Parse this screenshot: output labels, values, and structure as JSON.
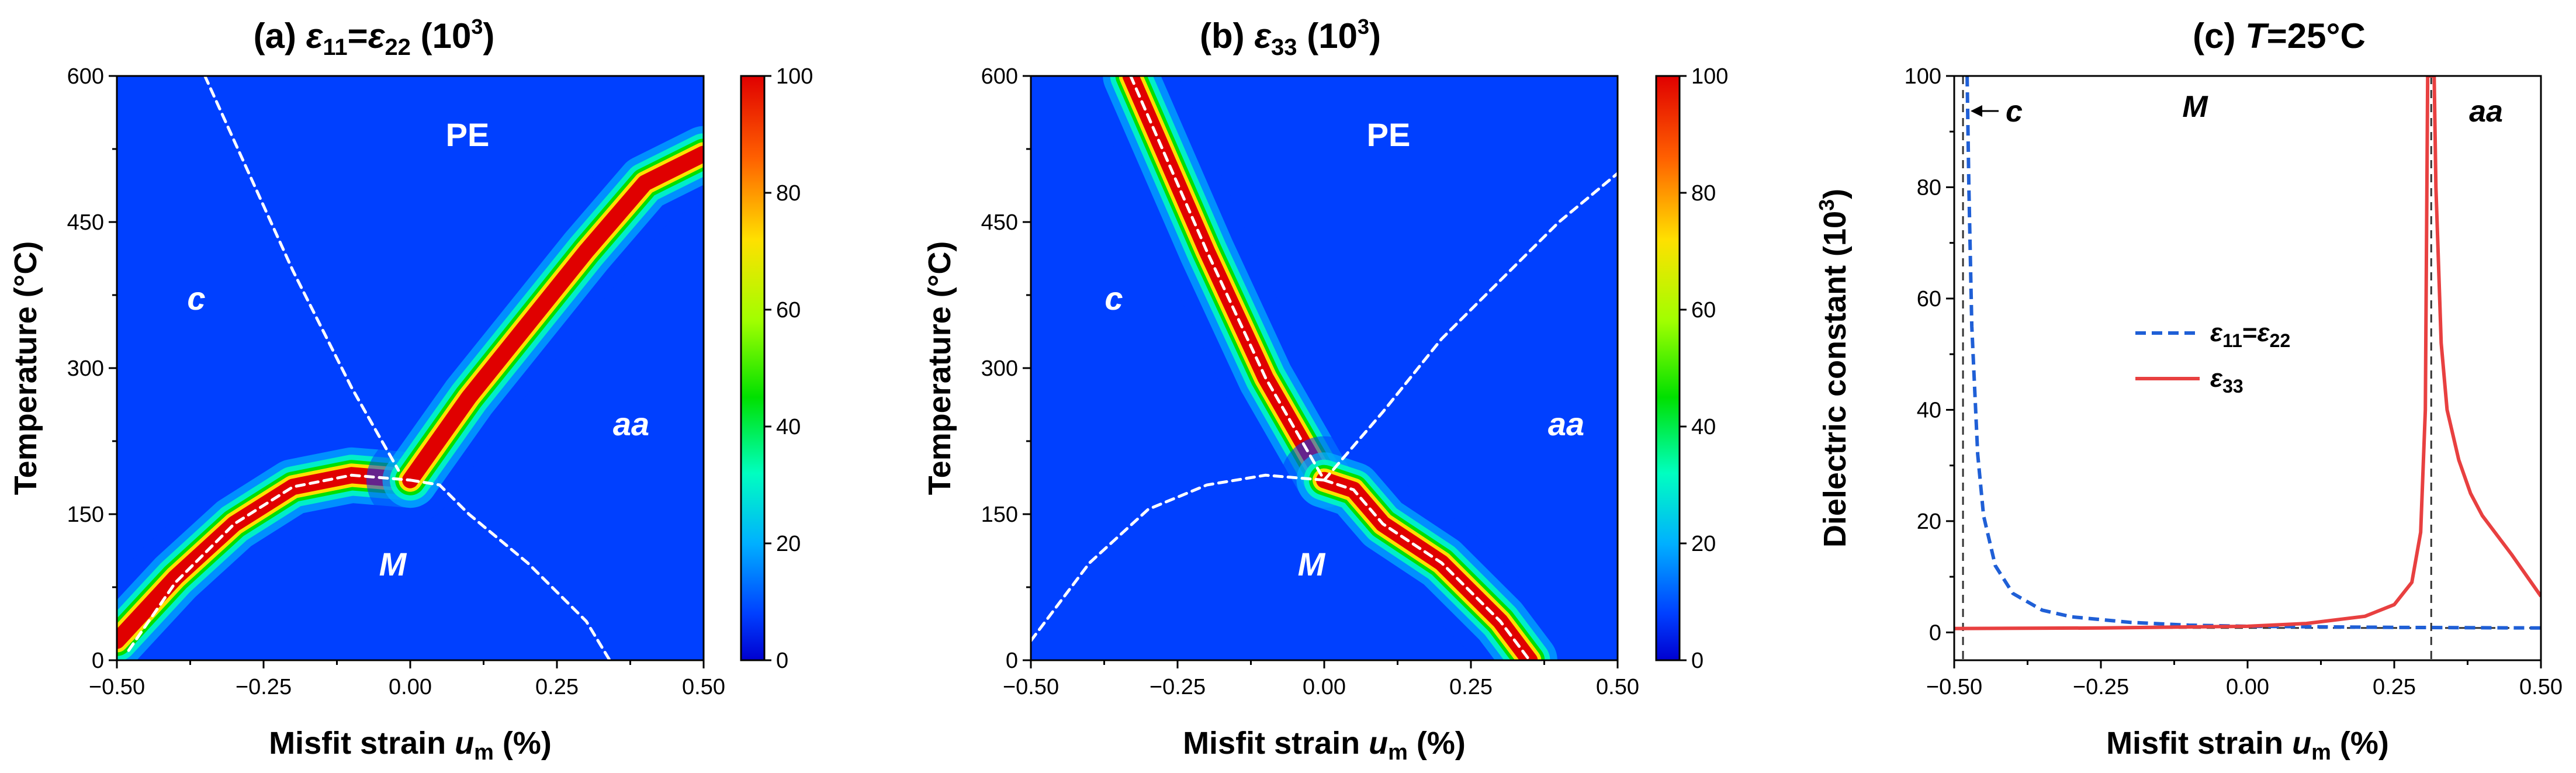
{
  "figure": "dielectric-constant-phase-diagrams",
  "colorbar": {
    "min": 0,
    "max": 100,
    "ticks": [
      "0",
      "20",
      "40",
      "60",
      "80",
      "100"
    ],
    "stops": [
      {
        "v": 0,
        "color": "#0000d0"
      },
      {
        "v": 8,
        "color": "#0040ff"
      },
      {
        "v": 20,
        "color": "#00b0ff"
      },
      {
        "v": 32,
        "color": "#00ffc0"
      },
      {
        "v": 45,
        "color": "#00e000"
      },
      {
        "v": 58,
        "color": "#a0ff00"
      },
      {
        "v": 72,
        "color": "#ffe000"
      },
      {
        "v": 86,
        "color": "#ff6000"
      },
      {
        "v": 100,
        "color": "#e00000"
      }
    ]
  },
  "panels": {
    "a": {
      "title_prefix": "(a)  ",
      "title_eps": "ε",
      "title_sub1": "11",
      "title_eq": "=",
      "title_eps2": "ε",
      "title_sub2": "22",
      "title_suffix": " (10",
      "title_sup": "3",
      "title_close": ")",
      "ylabel": "Temperature (°C)",
      "xlabel_main": "Misfit strain ",
      "xlabel_var": "u",
      "xlabel_sub": "m",
      "xlabel_unit": " (%)",
      "xticks": [
        "-0.50",
        "-0.25",
        "0.00",
        "0.25",
        "0.50"
      ],
      "yticks": [
        "0",
        "150",
        "300",
        "450",
        "600"
      ],
      "regions": {
        "pe": "PE",
        "c": "c",
        "aa": "aa",
        "m": "M"
      }
    },
    "b": {
      "title_prefix": "(b) ",
      "title_eps": "ε",
      "title_sub1": "33",
      "title_suffix": " (10",
      "title_sup": "3",
      "title_close": ")",
      "ylabel": "Temperature (°C)",
      "xlabel_main": "Misfit strain ",
      "xlabel_var": "u",
      "xlabel_sub": "m",
      "xlabel_unit": " (%)",
      "xticks": [
        "-0.50",
        "-0.25",
        "0.00",
        "0.25",
        "0.50"
      ],
      "yticks": [
        "0",
        "150",
        "300",
        "450",
        "600"
      ],
      "regions": {
        "pe": "PE",
        "c": "c",
        "aa": "aa",
        "m": "M"
      }
    },
    "c": {
      "title_prefix": "(c) ",
      "title_var": "T",
      "title_rest": "=25°C",
      "ylabel_main": "Dielectric constant (10",
      "ylabel_sup": "3",
      "ylabel_close": ")",
      "xlabel_main": "Misfit strain ",
      "xlabel_var": "u",
      "xlabel_sub": "m",
      "xlabel_unit": " (%)",
      "xticks": [
        "-0.50",
        "-0.25",
        "0.00",
        "0.25",
        "0.50"
      ],
      "yticks": [
        "0",
        "20",
        "40",
        "60",
        "80",
        "100"
      ],
      "regions": {
        "c": "c",
        "m": "M",
        "aa": "aa"
      },
      "legend": {
        "s1_eps": "ε",
        "s1_sub1": "11",
        "s1_eq": "=",
        "s1_eps2": "ε",
        "s1_sub2": "22",
        "s2_eps": "ε",
        "s2_sub": "33"
      }
    }
  },
  "chart_data": [
    {
      "type": "heatmap",
      "title": "(a) ε11=ε22 (10^3)",
      "xlabel": "Misfit strain u_m (%)",
      "ylabel": "Temperature (°C)",
      "xlim": [
        -0.5,
        0.5
      ],
      "ylim": [
        0,
        600
      ],
      "value_range": [
        0,
        100
      ],
      "peak_boundaries": [
        {
          "name": "c-M",
          "points": [
            [
              -0.5,
              20
            ],
            [
              -0.4,
              85
            ],
            [
              -0.3,
              140
            ],
            [
              -0.2,
              178
            ],
            [
              -0.1,
              190
            ],
            [
              0.0,
              185
            ]
          ]
        },
        {
          "name": "PE-aa",
          "points": [
            [
              0.0,
              185
            ],
            [
              0.1,
              270
            ],
            [
              0.2,
              345
            ],
            [
              0.3,
              420
            ],
            [
              0.4,
              490
            ],
            [
              0.5,
              520
            ]
          ]
        }
      ],
      "phase_boundaries_dashed": [
        {
          "name": "PE-c",
          "points": [
            [
              -0.35,
              600
            ],
            [
              -0.2,
              400
            ],
            [
              -0.1,
              280
            ],
            [
              -0.02,
              195
            ]
          ]
        },
        {
          "name": "c-M",
          "points": [
            [
              -0.48,
              10
            ],
            [
              -0.4,
              80
            ],
            [
              -0.3,
              140
            ],
            [
              -0.2,
              178
            ],
            [
              -0.1,
              190
            ],
            [
              0.0,
              185
            ]
          ]
        },
        {
          "name": "M-aa",
          "points": [
            [
              0.0,
              185
            ],
            [
              0.05,
              180
            ],
            [
              0.1,
              150
            ],
            [
              0.2,
              100
            ],
            [
              0.3,
              40
            ],
            [
              0.34,
              0
            ]
          ]
        }
      ]
    },
    {
      "type": "heatmap",
      "title": "(b) ε33 (10^3)",
      "xlabel": "Misfit strain u_m (%)",
      "ylabel": "Temperature (°C)",
      "xlim": [
        -0.5,
        0.5
      ],
      "ylim": [
        0,
        600
      ],
      "value_range": [
        0,
        100
      ],
      "peak_boundaries": [
        {
          "name": "PE-c",
          "points": [
            [
              -0.33,
              600
            ],
            [
              -0.2,
              420
            ],
            [
              -0.1,
              290
            ],
            [
              0.0,
              185
            ]
          ]
        },
        {
          "name": "M-aa",
          "points": [
            [
              0.0,
              185
            ],
            [
              0.05,
              175
            ],
            [
              0.1,
              140
            ],
            [
              0.2,
              100
            ],
            [
              0.3,
              40
            ],
            [
              0.35,
              0
            ]
          ]
        }
      ],
      "phase_boundaries_dashed": [
        {
          "name": "PE-c",
          "points": [
            [
              -0.33,
              600
            ],
            [
              -0.2,
              420
            ],
            [
              -0.1,
              290
            ],
            [
              0.0,
              185
            ]
          ]
        },
        {
          "name": "c-M",
          "points": [
            [
              -0.5,
              20
            ],
            [
              -0.4,
              100
            ],
            [
              -0.3,
              155
            ],
            [
              -0.2,
              180
            ],
            [
              -0.1,
              190
            ],
            [
              0.0,
              185
            ]
          ]
        },
        {
          "name": "PE-aa",
          "points": [
            [
              0.0,
              185
            ],
            [
              0.1,
              255
            ],
            [
              0.2,
              330
            ],
            [
              0.3,
              390
            ],
            [
              0.4,
              450
            ],
            [
              0.5,
              500
            ]
          ]
        },
        {
          "name": "M-aa",
          "points": [
            [
              0.0,
              185
            ],
            [
              0.05,
              175
            ],
            [
              0.1,
              140
            ],
            [
              0.2,
              100
            ],
            [
              0.3,
              40
            ],
            [
              0.35,
              0
            ]
          ]
        }
      ]
    },
    {
      "type": "line",
      "title": "(c) T=25°C",
      "xlabel": "Misfit strain u_m (%)",
      "ylabel": "Dielectric constant (10^3)",
      "xlim": [
        -0.5,
        0.5
      ],
      "ylim": [
        -5,
        100
      ],
      "series": [
        {
          "name": "ε11=ε22",
          "style": "dashed",
          "color": "#1f5fd6",
          "points": [
            [
              -0.478,
              100
            ],
            [
              -0.475,
              80
            ],
            [
              -0.47,
              55
            ],
            [
              -0.46,
              32
            ],
            [
              -0.45,
              21
            ],
            [
              -0.43,
              12
            ],
            [
              -0.4,
              7
            ],
            [
              -0.35,
              4
            ],
            [
              -0.3,
              2.8
            ],
            [
              -0.2,
              1.8
            ],
            [
              -0.1,
              1.3
            ],
            [
              0.0,
              1.1
            ],
            [
              0.25,
              0.9
            ],
            [
              0.5,
              0.8
            ]
          ]
        },
        {
          "name": "ε33",
          "style": "solid",
          "color": "#e84040",
          "points": [
            [
              -0.5,
              0.7
            ],
            [
              -0.25,
              0.8
            ],
            [
              0.0,
              1.1
            ],
            [
              0.1,
              1.6
            ],
            [
              0.2,
              2.9
            ],
            [
              0.25,
              5
            ],
            [
              0.28,
              9
            ],
            [
              0.295,
              18
            ],
            [
              0.303,
              40
            ],
            [
              0.307,
              100
            ],
            [
              0.318,
              100
            ],
            [
              0.321,
              80
            ],
            [
              0.33,
              52
            ],
            [
              0.34,
              40
            ],
            [
              0.36,
              31
            ],
            [
              0.38,
              25
            ],
            [
              0.4,
              21
            ],
            [
              0.45,
              14
            ],
            [
              0.5,
              6.5
            ]
          ]
        }
      ],
      "reference_lines": [
        {
          "orientation": "vertical",
          "x": -0.485
        },
        {
          "orientation": "vertical",
          "x": 0.313
        },
        {
          "orientation": "horizontal",
          "y": 0.8
        }
      ]
    }
  ]
}
